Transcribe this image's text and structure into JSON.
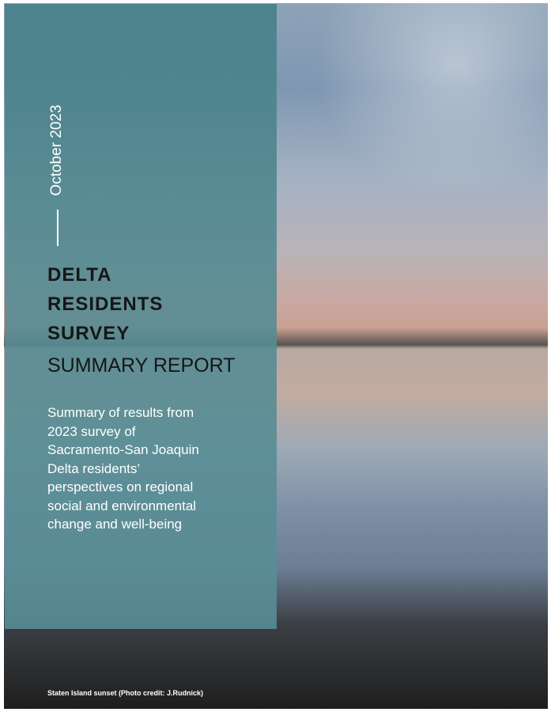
{
  "date": "October 2023",
  "title": {
    "lines": [
      "DELTA",
      "RESIDENTS",
      "SURVEY"
    ],
    "subtitle": "SUMMARY REPORT"
  },
  "description": [
    "Summary of results from",
    "2023 survey of",
    "Sacramento-San Joaquin",
    "Delta residents’",
    "perspectives on regional",
    "social and environmental",
    "change and well-being"
  ],
  "photo_credit": "Staten Island sunset (Photo credit: J.Rudnick)"
}
